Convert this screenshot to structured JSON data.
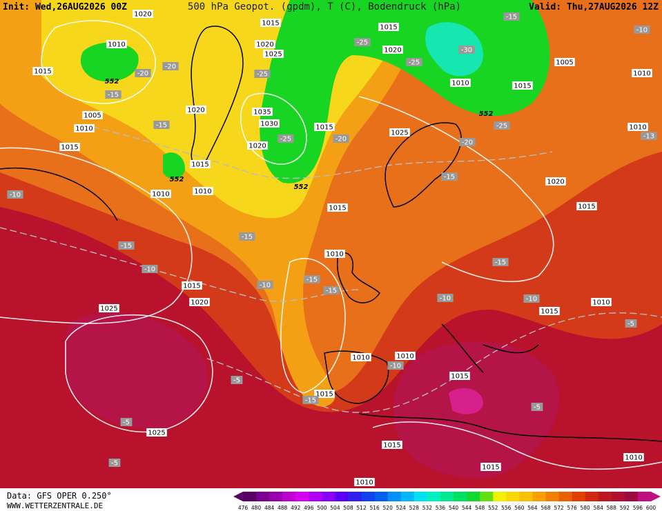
{
  "header": {
    "init": "Init: Wed,26AUG2026 00Z",
    "title": "500 hPa Geopot. (gpdm), T (C), Bodendruck (hPa)",
    "valid": "Valid: Thu,27AUG2026 12Z"
  },
  "isobar_labels": [
    "1020",
    "1015",
    "1010",
    "1015",
    "1020",
    "1025",
    "1015",
    "1020",
    "1005",
    "1010",
    "1010",
    "1015",
    "1020",
    "1005",
    "1010",
    "1035",
    "1030",
    "1015",
    "1025",
    "1010",
    "1015",
    "1020",
    "1015",
    "1010",
    "1010",
    "1020",
    "1015",
    "1015",
    "1010",
    "1015",
    "1020",
    "1025",
    "1015",
    "1010",
    "1010",
    "1010",
    "1015",
    "1015",
    "1025",
    "1015",
    "1010",
    "1015",
    "1010"
  ],
  "temperature_labels": [
    "-15",
    "-10",
    "-25",
    "-20",
    "-20",
    "-30",
    "-25",
    "-25",
    "-15",
    "-15",
    "-25",
    "-20",
    "-25",
    "-20",
    "-13",
    "-15",
    "-10",
    "-15",
    "-15",
    "-10",
    "-15",
    "-10",
    "-15",
    "-15",
    "-10",
    "-10",
    "-5",
    "-10",
    "-5",
    "-5",
    "-15",
    "-5",
    "-5"
  ],
  "height_labels": [
    "552",
    "552",
    "552",
    "552"
  ],
  "colorbar": {
    "ticks": [
      476,
      480,
      484,
      488,
      492,
      496,
      500,
      504,
      508,
      512,
      516,
      520,
      524,
      528,
      532,
      536,
      540,
      544,
      548,
      552,
      556,
      560,
      564,
      568,
      572,
      576,
      580,
      584,
      588,
      592,
      596,
      600
    ],
    "colors": [
      "#5a0064",
      "#7a0090",
      "#9a00b0",
      "#c000d0",
      "#d800f0",
      "#b000f8",
      "#8800f8",
      "#5a00f8",
      "#3020f0",
      "#1040f0",
      "#0060f0",
      "#0090f8",
      "#00b8f8",
      "#00e0f0",
      "#00f0c0",
      "#00e890",
      "#00e060",
      "#10d830",
      "#60e010",
      "#f0f000",
      "#f8d800",
      "#f8c000",
      "#f8a000",
      "#f08000",
      "#e86000",
      "#e04000",
      "#d02810",
      "#c01820",
      "#b01030",
      "#a00840",
      "#c01080"
    ]
  },
  "footer": {
    "source": "Data: GFS OPER 0.250°",
    "site": "WWW.WETTERZENTRALE.DE"
  }
}
